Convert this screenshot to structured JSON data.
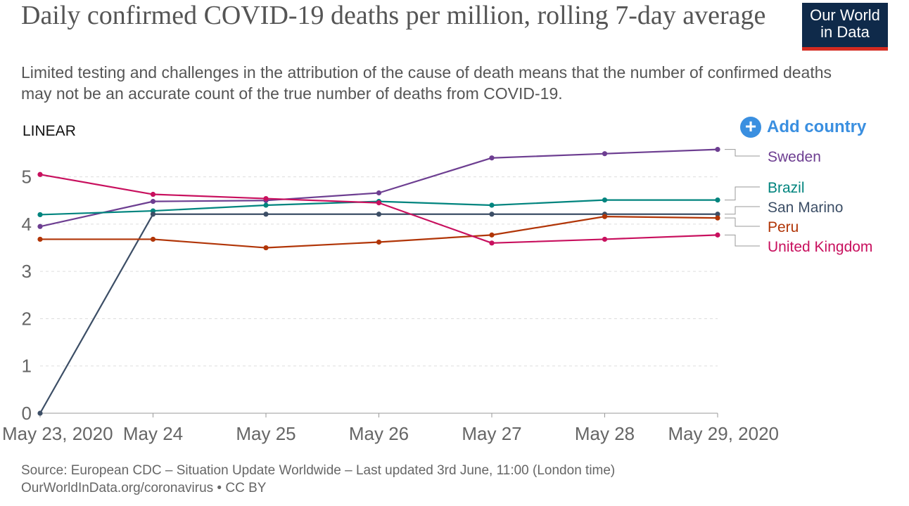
{
  "header": {
    "title": "Daily confirmed COVID-19 deaths per million, rolling 7-day average",
    "subtitle": "Limited testing and challenges in the attribution of the cause of death means that the number of confirmed deaths may not be an accurate count of the true number of deaths from COVID-19.",
    "logo_line1": "Our World",
    "logo_line2": "in Data"
  },
  "controls": {
    "scale_label": "LINEAR",
    "add_country_label": "Add country",
    "add_country_icon": "plus-circle-icon"
  },
  "colors": {
    "accent": "#3a8fe0",
    "logo_bg": "#0f2a4a",
    "logo_stripe": "#d42b21"
  },
  "chart_data": {
    "type": "line",
    "x": [
      "May 23, 2020",
      "May 24",
      "May 25",
      "May 26",
      "May 27",
      "May 28",
      "May 29, 2020"
    ],
    "ylim": [
      0,
      5.5
    ],
    "yticks": [
      0,
      1,
      2,
      3,
      4,
      5
    ],
    "grid": true,
    "legend": "right",
    "series": [
      {
        "name": "Sweden",
        "color": "#6d3e91",
        "values": [
          3.95,
          4.48,
          4.5,
          4.66,
          5.4,
          5.49,
          5.58
        ]
      },
      {
        "name": "Brazil",
        "color": "#00847e",
        "values": [
          4.2,
          4.28,
          4.4,
          4.48,
          4.4,
          4.51,
          4.51
        ]
      },
      {
        "name": "San Marino",
        "color": "#3c4e66",
        "values": [
          0,
          4.21,
          4.21,
          4.21,
          4.21,
          4.21,
          4.21
        ]
      },
      {
        "name": "Peru",
        "color": "#b13507",
        "values": [
          3.68,
          3.68,
          3.5,
          3.62,
          3.77,
          4.16,
          4.13
        ]
      },
      {
        "name": "United Kingdom",
        "color": "#c8105e",
        "values": [
          5.05,
          4.63,
          4.54,
          4.45,
          3.6,
          3.68,
          3.77
        ]
      }
    ]
  },
  "footer": {
    "source": "Source: European CDC – Situation Update Worldwide – Last updated 3rd June, 11:00 (London time)",
    "license": "OurWorldInData.org/coronavirus • CC BY"
  }
}
